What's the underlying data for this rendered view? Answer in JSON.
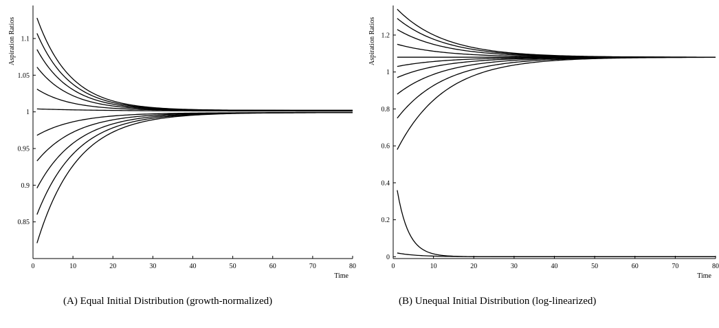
{
  "chart_data": [
    {
      "type": "line",
      "ylabel": "Aspiration Ratios",
      "xlabel": "Time",
      "xlim": [
        0,
        80
      ],
      "ylim": [
        0.8,
        1.145
      ],
      "x_ticks": [
        "0",
        "10",
        "20",
        "30",
        "40",
        "50",
        "60",
        "70",
        "80"
      ],
      "y_ticks": [
        "0.85",
        "0.9",
        "0.95",
        "1",
        "1.05",
        "1.1"
      ],
      "grid": false,
      "caption_label": "(A)",
      "caption_text": "Equal Initial Distribution (growth-normalized)",
      "series": [
        {
          "start": 1.128,
          "end": 1.002,
          "rate": 0.12
        },
        {
          "start": 1.107,
          "end": 1.002,
          "rate": 0.12
        },
        {
          "start": 1.085,
          "end": 1.002,
          "rate": 0.12
        },
        {
          "start": 1.061,
          "end": 1.002,
          "rate": 0.12
        },
        {
          "start": 1.031,
          "end": 1.002,
          "rate": 0.12
        },
        {
          "start": 1.004,
          "end": 1.001,
          "rate": 0.06
        },
        {
          "start": 0.968,
          "end": 0.999,
          "rate": 0.1
        },
        {
          "start": 0.933,
          "end": 0.999,
          "rate": 0.1
        },
        {
          "start": 0.896,
          "end": 0.999,
          "rate": 0.1
        },
        {
          "start": 0.86,
          "end": 0.999,
          "rate": 0.1
        },
        {
          "start": 0.821,
          "end": 0.999,
          "rate": 0.1
        }
      ]
    },
    {
      "type": "line",
      "ylabel": "Aspiration Ratios",
      "xlabel": "Time",
      "xlim": [
        0,
        80
      ],
      "ylim": [
        -0.01,
        1.36
      ],
      "x_ticks": [
        "0",
        "10",
        "20",
        "30",
        "40",
        "50",
        "60",
        "70",
        "80"
      ],
      "y_ticks": [
        "0",
        "0.2",
        "0.4",
        "0.6",
        "0.8",
        "1",
        "1.2"
      ],
      "grid": false,
      "caption_label": "(B)",
      "caption_text": "Unequal Initial Distribution (log-linearized)",
      "series": [
        {
          "start": 1.34,
          "end": 1.08,
          "rate": 0.085
        },
        {
          "start": 1.29,
          "end": 1.08,
          "rate": 0.085
        },
        {
          "start": 1.23,
          "end": 1.08,
          "rate": 0.085
        },
        {
          "start": 1.15,
          "end": 1.08,
          "rate": 0.085
        },
        {
          "start": 1.08,
          "end": 1.08,
          "rate": 0.085
        },
        {
          "start": 1.03,
          "end": 1.08,
          "rate": 0.085
        },
        {
          "start": 0.97,
          "end": 1.08,
          "rate": 0.085
        },
        {
          "start": 0.88,
          "end": 1.08,
          "rate": 0.085
        },
        {
          "start": 0.75,
          "end": 1.08,
          "rate": 0.085
        },
        {
          "start": 0.58,
          "end": 1.08,
          "rate": 0.085
        },
        {
          "start": 0.36,
          "end": 0.0,
          "rate": 0.35
        },
        {
          "start": 0.02,
          "end": 0.0,
          "rate": 0.2
        }
      ]
    }
  ]
}
